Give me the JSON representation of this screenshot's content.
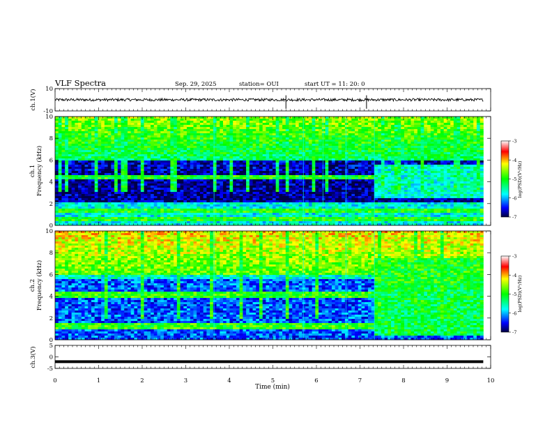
{
  "header": {
    "title": "VLF Spectra",
    "date": "Sep. 29, 2025",
    "station": "station= OUI",
    "start": "start  UT =   11: 20: 0"
  },
  "chart_data": [
    {
      "type": "line",
      "panel": "ch1-waveform",
      "ylabel": "ch.1(V)",
      "ylim": [
        -10,
        10
      ],
      "yticks": [
        "10",
        "-10"
      ],
      "series": [
        {
          "baseline": 0,
          "noise_amplitude": 1.2,
          "spike_at_min": [
            5.3,
            7.15
          ]
        }
      ],
      "xlim": [
        0,
        9.83
      ]
    },
    {
      "type": "heatmap",
      "panel": "ch1-spectrogram",
      "ylabel": "ch.1\nFrequency (kHz)",
      "ylabel_lines": [
        "ch.1",
        "Frequency (kHz)"
      ],
      "ylim": [
        0,
        10
      ],
      "yticks": [
        "0",
        "2",
        "4",
        "6",
        "8",
        "10"
      ],
      "colorbar": {
        "label": "log(PSD)(V²/Hz)",
        "ticks": [
          "-3",
          "-4",
          "-5",
          "-6",
          "-7"
        ],
        "range": [
          -7,
          -3
        ]
      },
      "events_min": [
        3.65,
        5.7,
        6.15,
        6.68,
        7.33
      ]
    },
    {
      "type": "heatmap",
      "panel": "ch2-spectrogram",
      "ylabel_lines": [
        "ch.2",
        "Frequency (kHz)"
      ],
      "ylim": [
        0,
        10
      ],
      "yticks": [
        "0",
        "2",
        "4",
        "6",
        "8",
        "10"
      ],
      "colorbar": {
        "label": "log(PSD)(V²/Hz)",
        "ticks": [
          "-3",
          "-4",
          "-5",
          "-6",
          "-7"
        ],
        "range": [
          -7,
          -3
        ]
      },
      "events_min": [
        3.65,
        5.7,
        6.68,
        7.33
      ]
    },
    {
      "type": "line",
      "panel": "ch3-waveform",
      "ylabel": "ch.3(V)",
      "ylim": [
        -5,
        5
      ],
      "yticks": [
        "5",
        "0",
        "-5"
      ],
      "series": [
        {
          "baseline": -2.1
        }
      ],
      "xlabel": "Time (min)",
      "xlim": [
        0,
        10
      ],
      "xticks": [
        "0",
        "1",
        "2",
        "3",
        "4",
        "5",
        "6",
        "7",
        "8",
        "9",
        "10"
      ],
      "data_end_min": 9.83
    }
  ]
}
